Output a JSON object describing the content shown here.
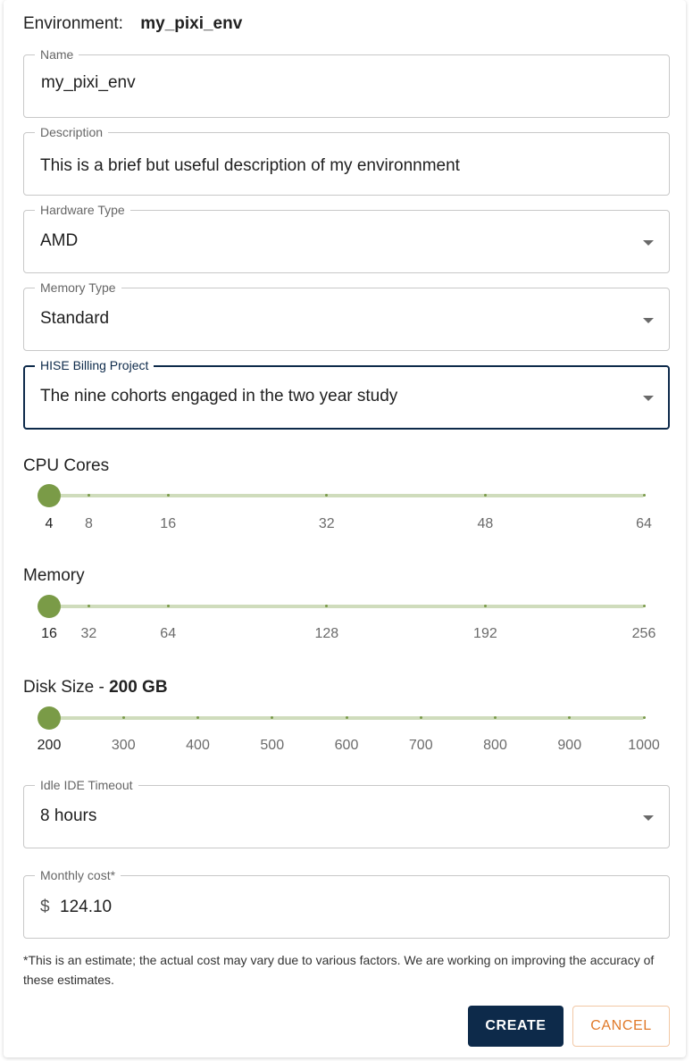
{
  "environment": {
    "label": "Environment:",
    "value": "my_pixi_env"
  },
  "fields": {
    "name": {
      "label": "Name",
      "value": "my_pixi_env"
    },
    "description": {
      "label": "Description",
      "value": "This is a brief but useful description of my environnment"
    },
    "hardware_type": {
      "label": "Hardware Type",
      "value": "AMD"
    },
    "memory_type": {
      "label": "Memory Type",
      "value": "Standard"
    },
    "billing_project": {
      "label": "HISE Billing Project",
      "value": "The nine cohorts engaged in the two year study"
    },
    "idle_timeout": {
      "label": "Idle IDE Timeout",
      "value": "8 hours"
    },
    "monthly_cost": {
      "label": "Monthly cost*",
      "currency": "$",
      "value": "124.10"
    }
  },
  "sliders": {
    "cpu": {
      "title": "CPU Cores",
      "value": 4,
      "min": 4,
      "max": 64,
      "marks": [
        "4",
        "8",
        "16",
        "32",
        "48",
        "64"
      ]
    },
    "memory": {
      "title": "Memory",
      "value": 16,
      "min": 16,
      "max": 256,
      "marks": [
        "16",
        "32",
        "64",
        "128",
        "192",
        "256"
      ]
    },
    "disk": {
      "title": "Disk Size - ",
      "title_value": "200 GB",
      "value": 200,
      "min": 200,
      "max": 1000,
      "marks": [
        "200",
        "300",
        "400",
        "500",
        "600",
        "700",
        "800",
        "900",
        "1000"
      ]
    }
  },
  "disclaimer": "*This is an estimate; the actual cost may vary due to various factors. We are working on improving the accuracy of these estimates.",
  "buttons": {
    "create": "CREATE",
    "cancel": "CANCEL"
  },
  "colors": {
    "primary": "#0d2a4a",
    "slider_thumb": "#7a9b47",
    "slider_track": "#cfdcbc",
    "cancel_text": "#e07a2a"
  }
}
